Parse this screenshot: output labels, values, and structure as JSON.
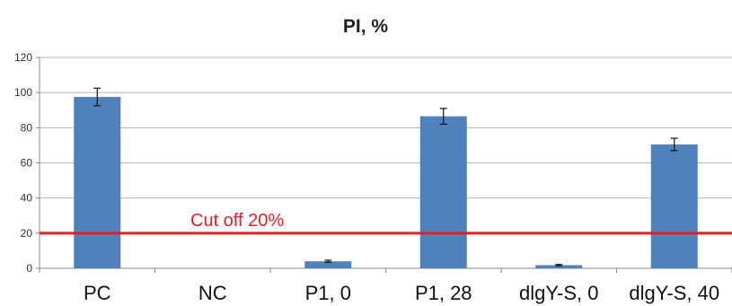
{
  "chart_data": {
    "type": "bar",
    "title": "PI, %",
    "xlabel": "",
    "ylabel": "",
    "categories": [
      "PC",
      "NC",
      "P1, 0",
      "P1, 28",
      "dlgY-S, 0",
      "dlgY-S, 40"
    ],
    "series": [
      {
        "values": [
          97.5,
          0,
          4,
          86.5,
          1.8,
          70.5
        ],
        "errors": [
          5,
          0,
          0.6,
          4.5,
          0.4,
          3.5
        ],
        "color": "#4f81bd"
      }
    ],
    "ylim": [
      0,
      120
    ],
    "yticks": [
      0,
      20,
      40,
      60,
      80,
      100,
      120
    ],
    "grid": true,
    "legend": "none",
    "reference_line": {
      "value": 20,
      "label": "Cut off 20%",
      "color": "#e31e24"
    },
    "colors": {
      "bar": "#4f81bd",
      "grid": "#b3b3b3",
      "cutoff": "#e31e24"
    }
  }
}
